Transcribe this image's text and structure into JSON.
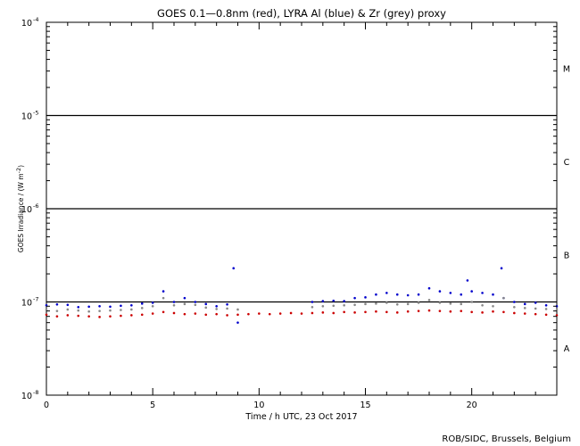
{
  "chart_data": {
    "type": "scatter",
    "title": "GOES 0.1—0.8nm (red), LYRA Al (blue) & Zr (grey) proxy",
    "xlabel": "Time / h UTC, 23 Oct 2017",
    "ylabel": "GOES Irradiance / (W m",
    "ylabel_sup": "-2",
    "ylabel_close": ")",
    "xlim": [
      0,
      24
    ],
    "ylim": [
      1e-08,
      0.0001
    ],
    "yscale": "log",
    "x_ticks": [
      {
        "value": 0,
        "label": "0"
      },
      {
        "value": 5,
        "label": "5"
      },
      {
        "value": 10,
        "label": "10"
      },
      {
        "value": 15,
        "label": "15"
      },
      {
        "value": 20,
        "label": "20"
      }
    ],
    "y_ticks": [
      {
        "value": 0.0001,
        "base": "10",
        "exp": "-4"
      },
      {
        "value": 1e-05,
        "base": "10",
        "exp": "-5"
      },
      {
        "value": 1e-06,
        "base": "10",
        "exp": "-6"
      },
      {
        "value": 1e-07,
        "base": "10",
        "exp": "-7"
      },
      {
        "value": 1e-08,
        "base": "10",
        "exp": "-8"
      }
    ],
    "class_lines": [
      1e-05,
      1e-06,
      1e-07
    ],
    "flare_classes": [
      {
        "label": "M",
        "value": 3.2e-05
      },
      {
        "label": "C",
        "value": 3.2e-06
      },
      {
        "label": "B",
        "value": 3.2e-07
      },
      {
        "label": "A",
        "value": 3.2e-08
      }
    ],
    "series": [
      {
        "color": "#cc0000",
        "x": [
          0,
          0.5,
          1,
          1.5,
          2,
          2.5,
          3,
          3.5,
          4,
          4.5,
          5,
          5.5,
          6,
          6.5,
          7,
          7.5,
          8,
          8.5,
          9,
          9.5,
          10,
          10.5,
          11,
          11.5,
          12,
          12.5,
          13,
          13.5,
          14,
          14.5,
          15,
          15.5,
          16,
          16.5,
          17,
          17.5,
          18,
          18.5,
          19,
          19.5,
          20,
          20.5,
          21,
          21.5,
          22,
          22.5,
          23,
          23.5,
          24
        ],
        "values": [
          7.3e-08,
          7e-08,
          7.2e-08,
          7.1e-08,
          7e-08,
          6.9e-08,
          7e-08,
          7.1e-08,
          7.2e-08,
          7.3e-08,
          7.5e-08,
          7.8e-08,
          7.6e-08,
          7.4e-08,
          7.5e-08,
          7.3e-08,
          7.4e-08,
          7.2e-08,
          7.3e-08,
          7.4e-08,
          7.5e-08,
          7.4e-08,
          7.5e-08,
          7.6e-08,
          7.5e-08,
          7.6e-08,
          7.7e-08,
          7.6e-08,
          7.8e-08,
          7.7e-08,
          7.8e-08,
          7.9e-08,
          7.8e-08,
          7.7e-08,
          7.9e-08,
          8e-08,
          8.1e-08,
          8e-08,
          7.9e-08,
          8e-08,
          7.8e-08,
          7.7e-08,
          7.9e-08,
          7.8e-08,
          7.6e-08,
          7.5e-08,
          7.4e-08,
          7.3e-08,
          7.2e-08
        ]
      },
      {
        "color": "#0000cc",
        "x": [
          0,
          0.5,
          1,
          1.5,
          2,
          2.5,
          3,
          3.5,
          4,
          4.5,
          5,
          5.5,
          6,
          6.5,
          7,
          7.5,
          8,
          8.5,
          8.8,
          9,
          12.5,
          13,
          13.5,
          14,
          14.5,
          15,
          15.5,
          16,
          16.5,
          17,
          17.5,
          18,
          18.5,
          19,
          19.5,
          19.8,
          20,
          20.5,
          21,
          21.4,
          21.5,
          22,
          22.5,
          23,
          23.5,
          24
        ],
        "values": [
          9.2e-08,
          9.4e-08,
          9.3e-08,
          8.8e-08,
          8.9e-08,
          9e-08,
          8.9e-08,
          9.1e-08,
          9.2e-08,
          9.6e-08,
          9.8e-08,
          1.3e-07,
          1e-07,
          1.1e-07,
          1e-07,
          9.5e-08,
          9e-08,
          9.4e-08,
          2.3e-07,
          6e-08,
          1e-07,
          1.02e-07,
          1.03e-07,
          1.02e-07,
          1.1e-07,
          1.12e-07,
          1.2e-07,
          1.25e-07,
          1.2e-07,
          1.18e-07,
          1.2e-07,
          1.4e-07,
          1.3e-07,
          1.25e-07,
          1.2e-07,
          1.7e-07,
          1.3e-07,
          1.25e-07,
          1.2e-07,
          2.3e-07,
          1.1e-07,
          1e-07,
          9.5e-08,
          9.8e-08,
          9.2e-08,
          9e-08
        ]
      },
      {
        "color": "#888888",
        "x": [
          0,
          0.5,
          1,
          1.5,
          2,
          2.5,
          3,
          3.5,
          4,
          4.5,
          5,
          5.5,
          6,
          6.5,
          7,
          7.5,
          8,
          8.5,
          9,
          12.5,
          13,
          13.5,
          14,
          14.5,
          15,
          15.5,
          16,
          16.5,
          17,
          17.5,
          18,
          18.5,
          19,
          19.5,
          20,
          20.5,
          21,
          21.5,
          22,
          22.5,
          23,
          23.5,
          24
        ],
        "values": [
          8.2e-08,
          8e-08,
          8.3e-08,
          8.1e-08,
          7.9e-08,
          8e-08,
          8.1e-08,
          8.2e-08,
          8.3e-08,
          8.6e-08,
          9e-08,
          1.1e-07,
          9.2e-08,
          9.5e-08,
          9.3e-08,
          8.7e-08,
          8.4e-08,
          8.5e-08,
          8.3e-08,
          8.8e-08,
          9e-08,
          9.1e-08,
          9.2e-08,
          9.3e-08,
          9.5e-08,
          9.6e-08,
          9.8e-08,
          9.4e-08,
          9.5e-08,
          9.8e-08,
          1.05e-07,
          9.8e-08,
          9.6e-08,
          9.5e-08,
          1e-07,
          9.2e-08,
          9e-08,
          1.1e-07,
          8.8e-08,
          8.6e-08,
          8.5e-08,
          8.4e-08,
          8.2e-08
        ]
      }
    ],
    "grid": false,
    "legend": "none"
  },
  "credit": "ROB/SIDC, Brussels, Belgium"
}
